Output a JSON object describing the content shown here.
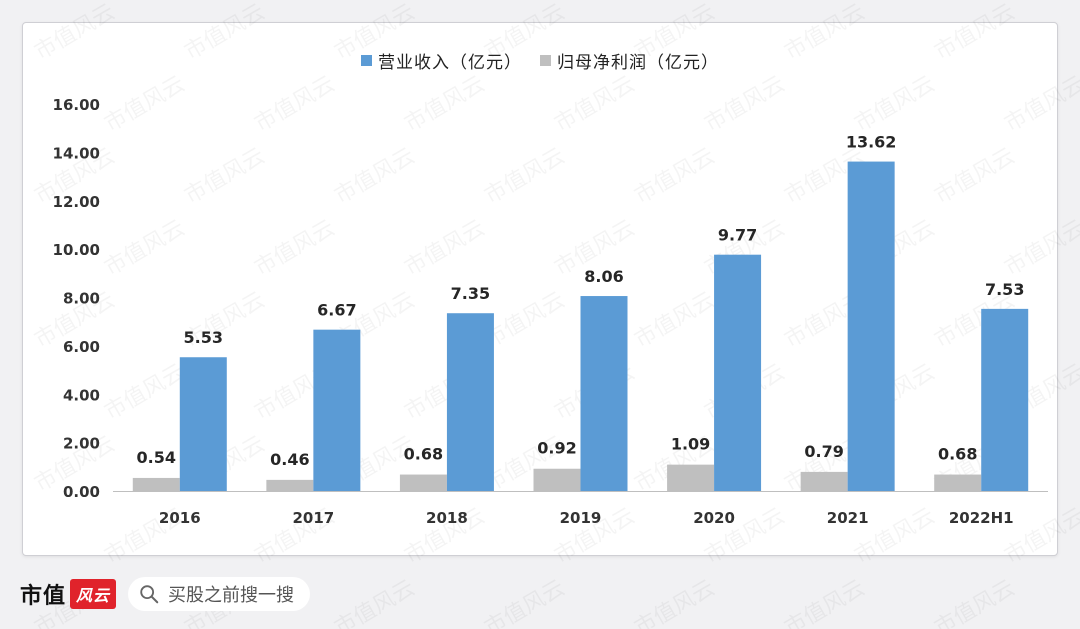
{
  "chart_data": {
    "type": "bar",
    "categories": [
      "2016",
      "2017",
      "2018",
      "2019",
      "2020",
      "2021",
      "2022H1"
    ],
    "series": [
      {
        "name": "营业收入（亿元）",
        "color": "#5b9bd5",
        "values": [
          5.53,
          6.67,
          7.35,
          8.06,
          9.77,
          13.62,
          7.53
        ]
      },
      {
        "name": "归母净利润（亿元）",
        "color": "#bfbfbf",
        "values": [
          0.54,
          0.46,
          0.68,
          0.92,
          1.09,
          0.79,
          0.68
        ]
      }
    ],
    "ylim": [
      0,
      16
    ],
    "yticks": [
      "0.00",
      "2.00",
      "4.00",
      "6.00",
      "8.00",
      "10.00",
      "12.00",
      "14.00",
      "16.00"
    ],
    "legend_position": "top-center",
    "grid": false
  },
  "footer": {
    "brand_text": "市值",
    "brand_badge": "风云",
    "search_text": "买股之前搜一搜"
  },
  "watermark": "市值风云"
}
